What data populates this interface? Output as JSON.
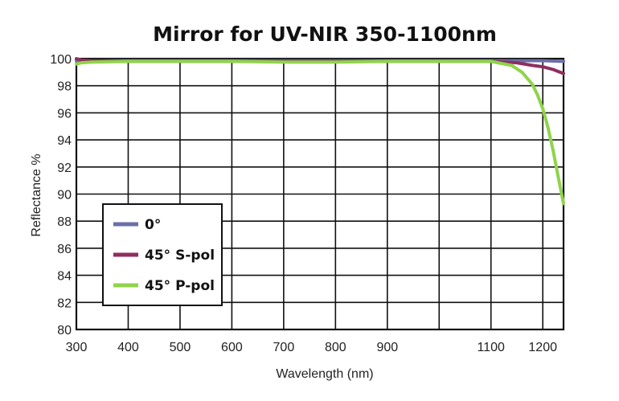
{
  "chart_data": {
    "type": "line",
    "title": "Mirror for UV-NIR 350-1100nm",
    "xlabel": "Wavelength (nm)",
    "ylabel": "Reflectance %",
    "xlim": [
      300,
      1240
    ],
    "ylim": [
      80,
      100
    ],
    "x_ticks": [
      300,
      400,
      500,
      600,
      700,
      800,
      900,
      1100,
      1200
    ],
    "x_gridlines": [
      300,
      400,
      500,
      600,
      700,
      800,
      900,
      1000,
      1100,
      1200
    ],
    "y_ticks": [
      100,
      98,
      96,
      94,
      92,
      90,
      88,
      86,
      84,
      82,
      80
    ],
    "grid": true,
    "legend_position": "bottom-left",
    "series": [
      {
        "name": "0°",
        "color": "#6b6fa8",
        "x": [
          300,
          400,
          500,
          600,
          700,
          800,
          900,
          1000,
          1100,
          1150,
          1200,
          1240
        ],
        "y": [
          99.85,
          99.85,
          99.85,
          99.85,
          99.85,
          99.85,
          99.85,
          99.85,
          99.85,
          99.85,
          99.85,
          99.8
        ]
      },
      {
        "name": "45° S-pol",
        "color": "#8e2e5e",
        "x": [
          300,
          310,
          330,
          400,
          500,
          600,
          700,
          800,
          900,
          1000,
          1100,
          1150,
          1180,
          1200,
          1220,
          1240
        ],
        "y": [
          100.0,
          99.9,
          99.85,
          99.8,
          99.8,
          99.8,
          99.8,
          99.8,
          99.8,
          99.8,
          99.8,
          99.7,
          99.5,
          99.4,
          99.2,
          98.9
        ]
      },
      {
        "name": "45° P-pol",
        "color": "#8fd44a",
        "x": [
          300,
          310,
          330,
          400,
          500,
          600,
          700,
          800,
          900,
          1000,
          1100,
          1140,
          1160,
          1180,
          1190,
          1200,
          1210,
          1220,
          1230,
          1240
        ],
        "y": [
          99.6,
          99.7,
          99.75,
          99.8,
          99.8,
          99.8,
          99.75,
          99.75,
          99.8,
          99.8,
          99.8,
          99.5,
          99.0,
          98.1,
          97.3,
          96.3,
          94.9,
          93.2,
          91.2,
          89.3
        ]
      }
    ]
  }
}
